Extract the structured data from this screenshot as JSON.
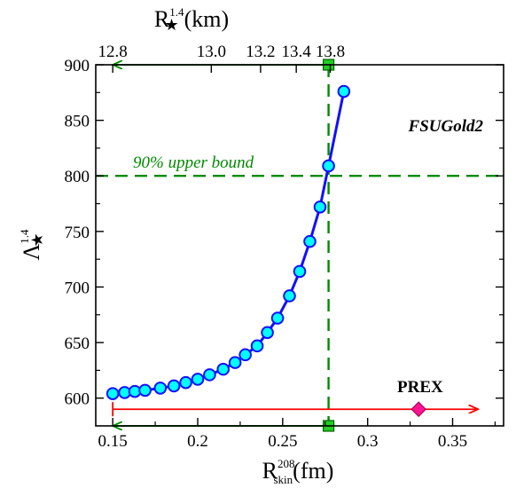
{
  "chart_data": {
    "type": "line",
    "model_label": "FSUGold2",
    "x_axis": {
      "title_main": "R",
      "title_sup": "208",
      "title_sub": "skin",
      "title_unit": "(fm)",
      "range": [
        0.14,
        0.38
      ],
      "ticks": [
        0.15,
        0.2,
        0.25,
        0.3,
        0.35
      ],
      "tick_labels": [
        "0.15",
        "0.2",
        "0.25",
        "0.3",
        "0.35"
      ]
    },
    "top_axis": {
      "title_main": "R",
      "title_star": "★",
      "title_sup": "1.4",
      "title_unit": "(km)",
      "ticks": [
        {
          "label": "12.8",
          "x": 0.15
        },
        {
          "label": "13.0",
          "x": 0.208
        },
        {
          "label": "13.2",
          "x": 0.237
        },
        {
          "label": "13.4",
          "x": 0.258
        },
        {
          "label": "13.8",
          "x": 0.278
        }
      ]
    },
    "y_axis": {
      "title_main": "Λ",
      "title_star": "★",
      "title_sup": "1.4",
      "range": [
        575,
        900
      ],
      "ticks": [
        600,
        650,
        700,
        750,
        800,
        850,
        900
      ],
      "tick_labels": [
        "600",
        "650",
        "700",
        "750",
        "800",
        "850",
        "900"
      ]
    },
    "series": [
      {
        "x": [
          0.15,
          0.157,
          0.163,
          0.169,
          0.178,
          0.186,
          0.193,
          0.2,
          0.207,
          0.215,
          0.222,
          0.228,
          0.235,
          0.241,
          0.247,
          0.254,
          0.26,
          0.266,
          0.272,
          0.277,
          0.286
        ],
        "y": [
          604,
          605,
          606,
          607,
          609,
          611,
          614,
          617,
          621,
          626,
          632,
          639,
          647,
          659,
          672,
          692,
          714,
          741,
          772,
          809,
          876
        ],
        "color": "#1010ff",
        "marker_color": "#00ffff"
      }
    ],
    "upper_bound": {
      "y": 800,
      "label": "90% upper bound",
      "color": "#008a00"
    },
    "skin_limit": {
      "x": 0.277,
      "color": "#008a00"
    },
    "prex": {
      "label": "PREX",
      "x": 0.33,
      "y": 590,
      "arrow_from": 0.15,
      "arrow_to": 0.365,
      "color": "#ff0000",
      "marker_color": "#ff1493"
    }
  }
}
